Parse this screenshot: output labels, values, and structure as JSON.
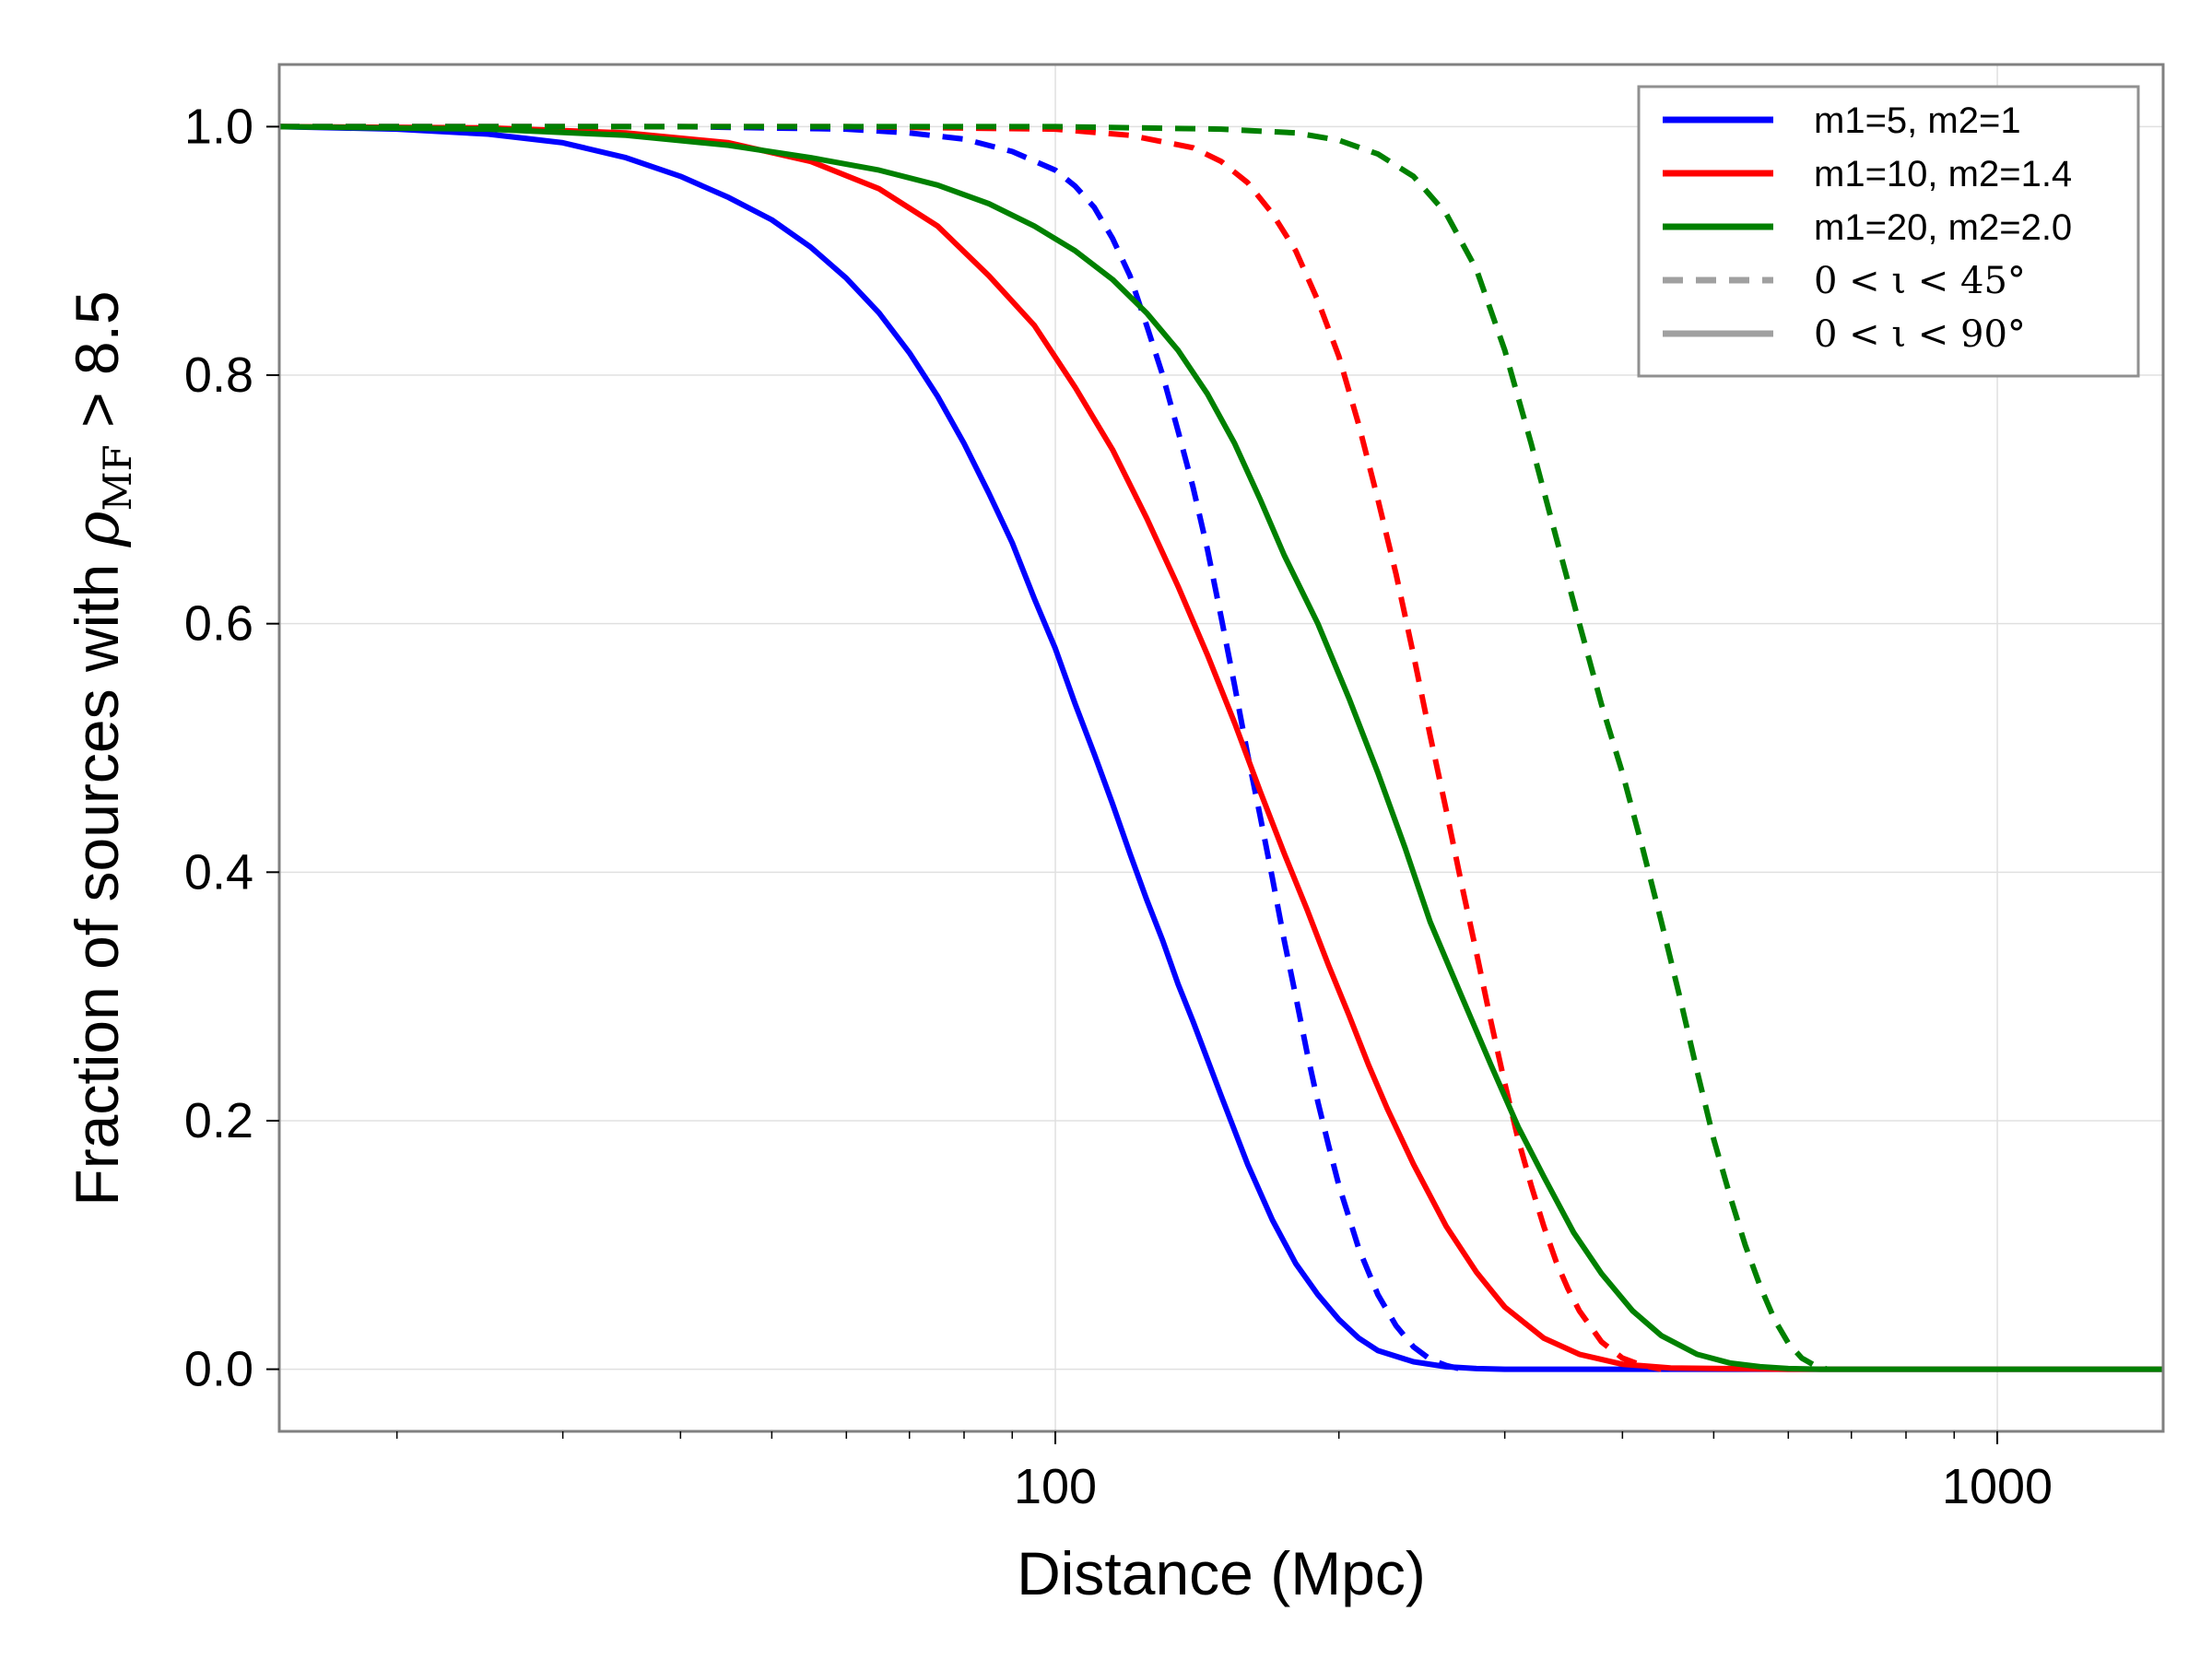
{
  "chart_data": {
    "type": "line",
    "xlabel": "Distance (Mpc)",
    "ylabel": {
      "prefix": "Fraction of sources with ",
      "symbol": "ρ",
      "subscript": "MF",
      "suffix": " > 8.5"
    },
    "x_scale": "log",
    "xlim": [
      15,
      1500
    ],
    "ylim": [
      -0.05,
      1.05
    ],
    "x_tick_labels": [
      "100",
      "1000"
    ],
    "y_tick_labels": [
      "0.0",
      "0.2",
      "0.4",
      "0.6",
      "0.8",
      "1.0"
    ],
    "grid": true,
    "legend_position": "top-right",
    "series": [
      {
        "name": "m1=5, m2=1 (0<ι<90°)",
        "color": "#0000ff",
        "style": "solid",
        "x": [
          15,
          20,
          25,
          30,
          35,
          40,
          45,
          50,
          55,
          60,
          65,
          70,
          75,
          80,
          85,
          90,
          95,
          100,
          105,
          110,
          115,
          120,
          125,
          130,
          135,
          140,
          150,
          160,
          170,
          180,
          190,
          200,
          210,
          220,
          240,
          260,
          280,
          300,
          400,
          600,
          1000,
          1500
        ],
        "y": [
          1.0,
          0.998,
          0.994,
          0.987,
          0.975,
          0.96,
          0.943,
          0.925,
          0.903,
          0.878,
          0.85,
          0.818,
          0.783,
          0.745,
          0.705,
          0.665,
          0.62,
          0.58,
          0.535,
          0.495,
          0.455,
          0.415,
          0.378,
          0.345,
          0.31,
          0.28,
          0.22,
          0.165,
          0.12,
          0.085,
          0.06,
          0.04,
          0.025,
          0.015,
          0.006,
          0.002,
          0.0005,
          0.0,
          0.0,
          0.0,
          0.0,
          0.0
        ]
      },
      {
        "name": "m1=5, m2=1 (0<ι<45°)",
        "color": "#0000ff",
        "style": "dashed",
        "x": [
          15,
          40,
          60,
          70,
          80,
          90,
          100,
          105,
          110,
          115,
          120,
          125,
          130,
          135,
          140,
          145,
          150,
          155,
          160,
          165,
          170,
          175,
          180,
          185,
          190,
          195,
          200,
          210,
          220,
          230,
          240,
          250,
          260,
          270
        ],
        "y": [
          1.0,
          1.0,
          0.998,
          0.995,
          0.99,
          0.98,
          0.965,
          0.952,
          0.935,
          0.91,
          0.88,
          0.84,
          0.8,
          0.755,
          0.71,
          0.66,
          0.605,
          0.55,
          0.495,
          0.445,
          0.395,
          0.345,
          0.3,
          0.255,
          0.215,
          0.18,
          0.148,
          0.097,
          0.06,
          0.035,
          0.018,
          0.008,
          0.003,
          0.0
        ]
      },
      {
        "name": "m1=10, m2=1.4 (0<ι<90°)",
        "color": "#ff0000",
        "style": "solid",
        "x": [
          15,
          25,
          35,
          45,
          55,
          65,
          75,
          85,
          95,
          105,
          115,
          125,
          135,
          145,
          155,
          165,
          175,
          185,
          195,
          205,
          215,
          225,
          240,
          260,
          280,
          300,
          330,
          360,
          400,
          450,
          600,
          1000,
          1500
        ],
        "y": [
          1.0,
          0.999,
          0.995,
          0.987,
          0.972,
          0.95,
          0.92,
          0.88,
          0.84,
          0.79,
          0.74,
          0.685,
          0.63,
          0.575,
          0.52,
          0.465,
          0.415,
          0.37,
          0.325,
          0.285,
          0.245,
          0.21,
          0.165,
          0.115,
          0.078,
          0.05,
          0.025,
          0.012,
          0.004,
          0.001,
          0.0,
          0.0,
          0.0
        ]
      },
      {
        "name": "m1=10, m2=1.4 (0<ι<45°)",
        "color": "#ff0000",
        "style": "dashed",
        "x": [
          15,
          60,
          100,
          120,
          140,
          150,
          160,
          170,
          180,
          190,
          200,
          210,
          220,
          230,
          240,
          250,
          260,
          270,
          280,
          290,
          300,
          310,
          320,
          330,
          340,
          350,
          360,
          380,
          400,
          420,
          440
        ],
        "y": [
          1.0,
          1.0,
          0.998,
          0.993,
          0.983,
          0.972,
          0.955,
          0.93,
          0.9,
          0.86,
          0.815,
          0.76,
          0.7,
          0.64,
          0.575,
          0.51,
          0.45,
          0.39,
          0.335,
          0.28,
          0.23,
          0.185,
          0.148,
          0.115,
          0.087,
          0.065,
          0.047,
          0.022,
          0.009,
          0.003,
          0.0
        ]
      },
      {
        "name": "m1=20, m2=2.0 (0<ι<90°)",
        "color": "#008000",
        "style": "solid",
        "x": [
          15,
          25,
          35,
          45,
          55,
          65,
          75,
          85,
          95,
          105,
          115,
          125,
          135,
          145,
          155,
          165,
          175,
          190,
          205,
          220,
          235,
          250,
          270,
          290,
          310,
          330,
          355,
          380,
          410,
          440,
          480,
          520,
          560,
          600,
          650,
          700,
          800,
          1000,
          1500
        ],
        "y": [
          1.0,
          0.998,
          0.993,
          0.985,
          0.975,
          0.965,
          0.953,
          0.938,
          0.92,
          0.9,
          0.877,
          0.85,
          0.82,
          0.785,
          0.745,
          0.7,
          0.655,
          0.6,
          0.54,
          0.48,
          0.42,
          0.36,
          0.3,
          0.245,
          0.195,
          0.155,
          0.11,
          0.077,
          0.047,
          0.027,
          0.012,
          0.005,
          0.002,
          0.0005,
          0.0,
          0.0,
          0.0,
          0.0,
          0.0
        ]
      },
      {
        "name": "m1=20, m2=2.0 (0<ι<45°)",
        "color": "#008000",
        "style": "dashed",
        "x": [
          15,
          100,
          150,
          180,
          200,
          220,
          240,
          260,
          280,
          300,
          320,
          340,
          360,
          380,
          400,
          420,
          440,
          460,
          480,
          500,
          520,
          540,
          560,
          580,
          600,
          620,
          640,
          660
        ],
        "y": [
          1.0,
          1.0,
          0.998,
          0.995,
          0.989,
          0.978,
          0.96,
          0.93,
          0.885,
          0.82,
          0.745,
          0.67,
          0.6,
          0.535,
          0.48,
          0.42,
          0.36,
          0.3,
          0.24,
          0.185,
          0.14,
          0.1,
          0.067,
          0.04,
          0.021,
          0.009,
          0.003,
          0.0
        ]
      }
    ],
    "legend": [
      {
        "label": "m1=5, m2=1",
        "color": "#0000ff",
        "style": "solid",
        "kind": "text"
      },
      {
        "label": "m1=10, m2=1.4",
        "color": "#ff0000",
        "style": "solid",
        "kind": "text"
      },
      {
        "label": "m1=20, m2=2.0",
        "color": "#008000",
        "style": "solid",
        "kind": "text"
      },
      {
        "label": "0 < ι < 45°",
        "color": "#a0a0a0",
        "style": "dashed",
        "kind": "math"
      },
      {
        "label": "0 < ι < 90°",
        "color": "#a0a0a0",
        "style": "solid",
        "kind": "math"
      }
    ]
  }
}
